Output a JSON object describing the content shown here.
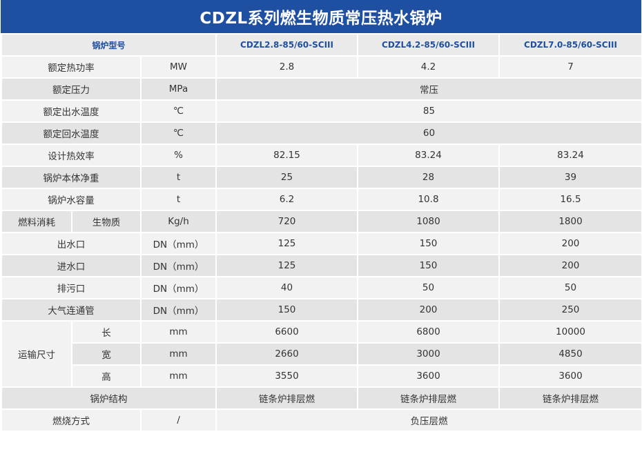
{
  "title": "CDZL系列燃生物质常压热水锅炉",
  "header": {
    "label": "锅炉型号",
    "models": [
      "CDZL2.8-85/60-SCIII",
      "CDZL4.2-85/60-SCIII",
      "CDZL7.0-85/60-SCIII"
    ]
  },
  "rows": [
    {
      "label": "额定热功率",
      "unit": "MW",
      "values": [
        "2.8",
        "4.2",
        "7"
      ]
    },
    {
      "label": "额定压力",
      "unit": "MPa",
      "merged": "常压"
    },
    {
      "label": "额定出水温度",
      "unit": "℃",
      "merged": "85"
    },
    {
      "label": "额定回水温度",
      "unit": "℃",
      "merged": "60"
    },
    {
      "label": "设计热效率",
      "unit": "%",
      "values": [
        "82.15",
        "83.24",
        "83.24"
      ]
    },
    {
      "label": "锅炉本体净重",
      "unit": "t",
      "values": [
        "25",
        "28",
        "39"
      ]
    },
    {
      "label": "锅炉水容量",
      "unit": "t",
      "values": [
        "6.2",
        "10.8",
        "16.5"
      ]
    },
    {
      "group": "燃料消耗",
      "label": "生物质",
      "unit": "Kg/h",
      "values": [
        "720",
        "1080",
        "1800"
      ]
    },
    {
      "label": "出水口",
      "unit": "DN（mm）",
      "values": [
        "125",
        "150",
        "200"
      ]
    },
    {
      "label": "进水口",
      "unit": "DN（mm）",
      "values": [
        "125",
        "150",
        "200"
      ]
    },
    {
      "label": "排污口",
      "unit": "DN（mm）",
      "values": [
        "40",
        "50",
        "50"
      ]
    },
    {
      "label": "大气连通管",
      "unit": "DN（mm）",
      "values": [
        "150",
        "200",
        "250"
      ]
    }
  ],
  "transport": {
    "group": "运输尺寸",
    "rows": [
      {
        "label": "长",
        "unit": "mm",
        "values": [
          "6600",
          "6800",
          "10000"
        ]
      },
      {
        "label": "宽",
        "unit": "mm",
        "values": [
          "2660",
          "3000",
          "4850"
        ]
      },
      {
        "label": "高",
        "unit": "mm",
        "values": [
          "3550",
          "3600",
          "3600"
        ]
      }
    ]
  },
  "structure": {
    "label": "锅炉结构",
    "values": [
      "链条炉排层燃",
      "链条炉排层燃",
      "链条炉排层燃"
    ]
  },
  "combustion": {
    "label": "燃烧方式",
    "unit": "/",
    "merged": "负压层燃"
  }
}
